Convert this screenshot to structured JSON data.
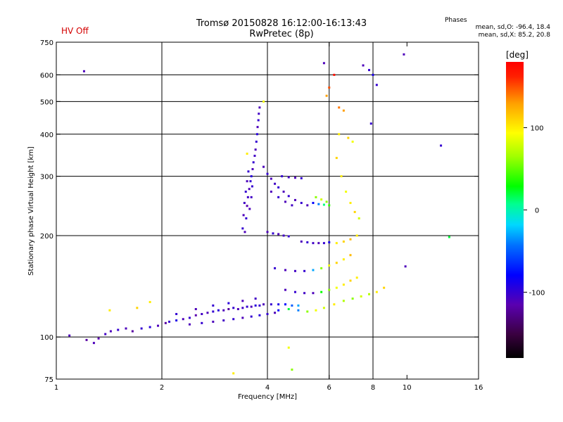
{
  "header": {
    "title_line1": "Tromsø 20150828 16:12:00-16:13:43",
    "title_line2": "RwPretec (8p)",
    "status": "HV Off",
    "phases_title": "Phases",
    "phases_o": "mean, sd,O: -96.4, 18.4",
    "phases_x": "mean, sd,X: 85.2, 20.8"
  },
  "colors": {
    "status": "#d40000",
    "grid": "#000000"
  },
  "chart_data": {
    "type": "scatter",
    "xlabel": "Frequency [MHz]",
    "ylabel": "Stationary phase Virtual Height [km]",
    "xscale": "log",
    "yscale": "log",
    "xlim": [
      1,
      16
    ],
    "ylim": [
      75,
      750
    ],
    "xticks": [
      1,
      2,
      4,
      6,
      8,
      10,
      16
    ],
    "xtick_labels": [
      "1",
      "2",
      "4",
      "6",
      "8",
      "10",
      "16"
    ],
    "xgrid": [
      2,
      4,
      6,
      8
    ],
    "yticks": [
      75,
      100,
      200,
      300,
      400,
      500,
      600,
      750
    ],
    "ytick_labels": [
      "75",
      "100",
      "200",
      "300",
      "400",
      "500",
      "600",
      "750"
    ],
    "ygrid": [
      100,
      200,
      300,
      400,
      500,
      600
    ],
    "colorbar": {
      "label": "[deg]",
      "range": [
        -180,
        180
      ],
      "ticks": [
        100,
        0,
        -100
      ],
      "tick_labels": [
        "100",
        "0",
        "-100"
      ]
    },
    "series": [
      {
        "points": [
          [
            1.2,
            615,
            -110
          ],
          [
            1.09,
            101,
            -110
          ],
          [
            1.22,
            98,
            -120
          ],
          [
            1.28,
            96,
            -110
          ],
          [
            1.32,
            99,
            -115
          ],
          [
            1.38,
            102,
            -105
          ],
          [
            1.43,
            104,
            -110
          ],
          [
            1.5,
            105,
            -100
          ],
          [
            1.58,
            106,
            -110
          ],
          [
            1.65,
            104,
            -120
          ],
          [
            1.75,
            106,
            -100
          ],
          [
            1.85,
            107,
            -95
          ],
          [
            1.95,
            108,
            -110
          ],
          [
            2.05,
            110,
            -120
          ],
          [
            2.1,
            111,
            -100
          ],
          [
            2.2,
            112,
            -90
          ],
          [
            2.3,
            113,
            -110
          ],
          [
            2.4,
            114,
            -100
          ],
          [
            2.5,
            116,
            -115
          ],
          [
            2.6,
            117,
            -105
          ],
          [
            2.7,
            118,
            -110
          ],
          [
            2.8,
            119,
            -100
          ],
          [
            2.9,
            120,
            -95
          ],
          [
            3.0,
            120,
            -110
          ],
          [
            3.1,
            121,
            -120
          ],
          [
            3.2,
            122,
            -100
          ],
          [
            3.3,
            121,
            -110
          ],
          [
            3.4,
            122,
            -105
          ],
          [
            3.5,
            123,
            -100
          ],
          [
            3.6,
            123,
            -110
          ],
          [
            3.7,
            124,
            -95
          ],
          [
            3.8,
            124,
            -100
          ],
          [
            3.9,
            125,
            -110
          ],
          [
            4.1,
            125,
            -100
          ],
          [
            4.3,
            125,
            -90
          ],
          [
            4.5,
            125,
            -80
          ],
          [
            4.7,
            124,
            -50
          ],
          [
            4.9,
            124,
            -30
          ],
          [
            2.4,
            109,
            -110
          ],
          [
            2.6,
            110,
            -100
          ],
          [
            2.8,
            111,
            -110
          ],
          [
            3.0,
            112,
            -105
          ],
          [
            3.2,
            113,
            -100
          ],
          [
            3.4,
            114,
            -110
          ],
          [
            3.6,
            115,
            -100
          ],
          [
            3.8,
            116,
            -95
          ],
          [
            4.0,
            117,
            -100
          ],
          [
            4.2,
            118,
            -110
          ],
          [
            2.2,
            117,
            -100
          ],
          [
            2.5,
            121,
            -110
          ],
          [
            2.8,
            124,
            -100
          ],
          [
            3.1,
            126,
            -95
          ],
          [
            3.4,
            128,
            -110
          ],
          [
            3.7,
            130,
            -105
          ],
          [
            3.45,
            205,
            -110
          ],
          [
            3.48,
            225,
            -100
          ],
          [
            3.5,
            245,
            -115
          ],
          [
            3.52,
            260,
            -105
          ],
          [
            3.55,
            275,
            -110
          ],
          [
            3.58,
            290,
            -100
          ],
          [
            3.6,
            300,
            -95
          ],
          [
            3.63,
            315,
            -110
          ],
          [
            3.65,
            330,
            -100
          ],
          [
            3.68,
            345,
            -105
          ],
          [
            3.7,
            360,
            -110
          ],
          [
            3.72,
            380,
            -100
          ],
          [
            3.74,
            400,
            -95
          ],
          [
            3.75,
            420,
            -110
          ],
          [
            3.77,
            440,
            -100
          ],
          [
            3.78,
            460,
            -105
          ],
          [
            3.8,
            480,
            -110
          ],
          [
            3.4,
            210,
            -100
          ],
          [
            3.42,
            230,
            -110
          ],
          [
            3.44,
            250,
            -105
          ],
          [
            3.47,
            270,
            -100
          ],
          [
            3.5,
            290,
            -110
          ],
          [
            3.53,
            310,
            -100
          ],
          [
            3.56,
            240,
            -110
          ],
          [
            3.6,
            260,
            -105
          ],
          [
            3.62,
            280,
            -100
          ],
          [
            3.9,
            320,
            -110
          ],
          [
            4.0,
            305,
            -100
          ],
          [
            4.1,
            295,
            -110
          ],
          [
            4.2,
            285,
            -105
          ],
          [
            4.3,
            278,
            -100
          ],
          [
            4.45,
            270,
            -110
          ],
          [
            4.6,
            262,
            -100
          ],
          [
            4.8,
            255,
            -110
          ],
          [
            5.0,
            250,
            -100
          ],
          [
            5.2,
            246,
            -110
          ],
          [
            4.4,
            300,
            -100
          ],
          [
            4.6,
            298,
            -105
          ],
          [
            4.8,
            297,
            -110
          ],
          [
            5.0,
            296,
            -100
          ],
          [
            4.1,
            270,
            -110
          ],
          [
            4.3,
            260,
            -100
          ],
          [
            4.5,
            252,
            -110
          ],
          [
            4.7,
            246,
            -105
          ],
          [
            5.4,
            250,
            -80
          ],
          [
            5.6,
            248,
            -40
          ],
          [
            5.8,
            247,
            10
          ],
          [
            6.0,
            246,
            40
          ],
          [
            5.5,
            260,
            60
          ],
          [
            5.7,
            256,
            80
          ],
          [
            5.9,
            252,
            60
          ],
          [
            4.0,
            205,
            -110
          ],
          [
            4.15,
            203,
            -100
          ],
          [
            4.3,
            202,
            -110
          ],
          [
            4.45,
            200,
            -105
          ],
          [
            4.6,
            199,
            -100
          ],
          [
            5.0,
            192,
            -110
          ],
          [
            5.2,
            191,
            -100
          ],
          [
            5.4,
            190,
            -105
          ],
          [
            5.6,
            190,
            -110
          ],
          [
            5.8,
            190,
            -100
          ],
          [
            6.0,
            191,
            -90
          ],
          [
            6.3,
            190,
            100
          ],
          [
            6.6,
            192,
            110
          ],
          [
            6.9,
            195,
            120
          ],
          [
            7.2,
            200,
            100
          ],
          [
            4.2,
            160,
            -100
          ],
          [
            4.5,
            158,
            -110
          ],
          [
            4.8,
            157,
            -105
          ],
          [
            5.1,
            157,
            -100
          ],
          [
            5.4,
            158,
            -30
          ],
          [
            5.7,
            160,
            60
          ],
          [
            6.0,
            163,
            90
          ],
          [
            6.3,
            166,
            110
          ],
          [
            6.6,
            170,
            100
          ],
          [
            6.9,
            175,
            120
          ],
          [
            4.5,
            138,
            -110
          ],
          [
            4.8,
            136,
            -100
          ],
          [
            5.1,
            135,
            -105
          ],
          [
            5.4,
            135,
            -110
          ],
          [
            5.7,
            136,
            30
          ],
          [
            6.0,
            138,
            60
          ],
          [
            6.3,
            140,
            90
          ],
          [
            6.6,
            143,
            100
          ],
          [
            6.9,
            147,
            110
          ],
          [
            7.2,
            150,
            100
          ],
          [
            4.3,
            120,
            -80
          ],
          [
            4.6,
            121,
            20
          ],
          [
            4.9,
            120,
            -40
          ],
          [
            5.2,
            119,
            60
          ],
          [
            5.5,
            120,
            90
          ],
          [
            5.8,
            122,
            80
          ],
          [
            6.2,
            125,
            100
          ],
          [
            6.6,
            128,
            70
          ],
          [
            7.0,
            130,
            60
          ],
          [
            7.4,
            132,
            80
          ],
          [
            7.8,
            134,
            70
          ],
          [
            8.2,
            136,
            100
          ],
          [
            8.6,
            140,
            110
          ],
          [
            6.3,
            340,
            110
          ],
          [
            6.5,
            300,
            100
          ],
          [
            6.7,
            270,
            90
          ],
          [
            6.9,
            250,
            100
          ],
          [
            7.1,
            235,
            110
          ],
          [
            7.3,
            225,
            80
          ],
          [
            6.4,
            400,
            100
          ],
          [
            6.8,
            390,
            110
          ],
          [
            7.0,
            380,
            90
          ],
          [
            5.9,
            520,
            130
          ],
          [
            6.0,
            550,
            150
          ],
          [
            6.2,
            600,
            170
          ],
          [
            6.4,
            480,
            140
          ],
          [
            6.6,
            470,
            130
          ],
          [
            5.8,
            650,
            -110
          ],
          [
            7.5,
            640,
            -110
          ],
          [
            7.8,
            620,
            -100
          ],
          [
            8.0,
            600,
            -90
          ],
          [
            8.2,
            560,
            -100
          ],
          [
            9.8,
            690,
            -110
          ],
          [
            7.9,
            430,
            -100
          ],
          [
            12.5,
            370,
            -100
          ],
          [
            9.9,
            162,
            -110
          ],
          [
            3.5,
            350,
            100
          ],
          [
            3.9,
            500,
            90
          ],
          [
            3.2,
            78,
            100
          ],
          [
            4.6,
            93,
            90
          ],
          [
            4.7,
            80,
            60
          ],
          [
            1.42,
            120,
            100
          ],
          [
            1.7,
            122,
            110
          ],
          [
            1.85,
            127,
            100
          ],
          [
            13.2,
            198,
            20
          ]
        ]
      }
    ]
  }
}
